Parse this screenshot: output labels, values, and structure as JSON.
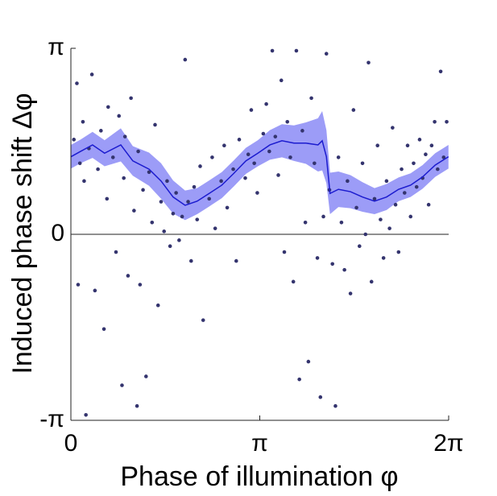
{
  "chart_data": {
    "type": "scatter",
    "xlabel": "Phase of illumination φ",
    "ylabel": "Induced phase shift Δφ",
    "xlim": [
      0,
      6.28319
    ],
    "ylim": [
      -3.14159,
      3.14159
    ],
    "xticks": [
      0,
      {
        "value": 3.14159,
        "label": "π"
      },
      {
        "value": 6.28319,
        "label": "2π"
      }
    ],
    "yticks": [
      {
        "value": -3.14159,
        "label": "-π"
      },
      0,
      {
        "value": 3.14159,
        "label": "π"
      }
    ],
    "zero_line": true,
    "series": [
      {
        "type": "scatter",
        "color": "#34346e",
        "x": [
          0.05,
          0.1,
          0.12,
          0.15,
          0.2,
          0.22,
          0.25,
          0.3,
          0.35,
          0.4,
          0.45,
          0.5,
          0.55,
          0.6,
          0.62,
          0.7,
          0.75,
          0.8,
          0.85,
          0.88,
          0.9,
          0.95,
          1.0,
          1.05,
          1.1,
          1.12,
          1.15,
          1.2,
          1.25,
          1.3,
          1.35,
          1.4,
          1.45,
          1.5,
          1.55,
          1.6,
          1.65,
          1.7,
          1.75,
          1.8,
          1.85,
          1.9,
          1.95,
          2.0,
          2.05,
          2.1,
          2.15,
          2.2,
          2.3,
          2.35,
          2.4,
          2.5,
          2.55,
          2.6,
          2.7,
          2.75,
          2.8,
          2.9,
          2.95,
          3.0,
          3.05,
          3.1,
          3.2,
          3.25,
          3.3,
          3.35,
          3.4,
          3.45,
          3.5,
          3.55,
          3.6,
          3.65,
          3.7,
          3.75,
          3.8,
          3.85,
          3.9,
          3.95,
          4.0,
          4.05,
          4.1,
          4.15,
          4.2,
          4.25,
          4.3,
          4.35,
          4.4,
          4.45,
          4.5,
          4.55,
          4.6,
          4.65,
          4.7,
          4.75,
          4.8,
          4.85,
          4.9,
          4.95,
          5.0,
          5.05,
          5.1,
          5.15,
          5.2,
          5.25,
          5.3,
          5.35,
          5.4,
          5.45,
          5.5,
          5.55,
          5.6,
          5.65,
          5.7,
          5.75,
          5.8,
          5.85,
          5.9,
          5.95,
          6.0,
          6.05,
          6.1,
          6.15,
          6.2,
          6.25
        ],
        "values": [
          1.6,
          2.55,
          -0.85,
          1.2,
          1.9,
          0.9,
          -3.05,
          1.45,
          2.7,
          -0.95,
          1.1,
          1.75,
          -1.6,
          0.6,
          2.15,
          1.3,
          -0.3,
          2.0,
          -2.55,
          0.95,
          1.65,
          -0.7,
          2.3,
          0.4,
          -2.9,
          1.4,
          -0.85,
          0.75,
          -2.4,
          1.05,
          0.2,
          1.85,
          -1.2,
          0.55,
          0.05,
          0.9,
          -0.2,
          0.35,
          0.7,
          -0.1,
          0.3,
          2.95,
          0.55,
          -0.45,
          0.8,
          0.25,
          1.15,
          -1.45,
          0.6,
          1.3,
          0.1,
          0.9,
          1.5,
          0.45,
          1.1,
          -0.45,
          1.6,
          0.95,
          1.35,
          2.1,
          1.2,
          0.7,
          1.7,
          2.2,
          1.4,
          3.1,
          1.65,
          1.0,
          2.6,
          -0.3,
          1.9,
          1.3,
          -0.8,
          3.1,
          -2.45,
          1.75,
          0.2,
          -2.15,
          2.3,
          1.2,
          -0.4,
          -2.75,
          0.3,
          3.05,
          0.75,
          -0.5,
          -2.9,
          1.3,
          0.2,
          -0.6,
          0.9,
          -1.0,
          2.1,
          0.45,
          -0.2,
          1.2,
          0.0,
          2.9,
          -0.8,
          0.6,
          1.5,
          0.25,
          -0.4,
          0.9,
          0.1,
          1.8,
          0.5,
          -0.3,
          1.1,
          0.7,
          1.5,
          0.3,
          1.2,
          0.8,
          1.6,
          0.95,
          1.35,
          0.5,
          1.5,
          1.9,
          1.1,
          2.75,
          1.3,
          1.9
        ]
      },
      {
        "type": "line",
        "color": "#1c1ccf",
        "band_color": "#9c9cf7",
        "x": [
          0,
          0.16,
          0.36,
          0.56,
          0.83,
          1.03,
          1.3,
          1.5,
          1.7,
          1.9,
          2.1,
          2.3,
          2.51,
          2.71,
          2.91,
          3.11,
          3.31,
          3.51,
          3.71,
          3.91,
          4.11,
          4.18,
          4.25,
          4.31,
          4.45,
          4.65,
          4.85,
          5.05,
          5.25,
          5.45,
          5.65,
          5.85,
          6.06,
          6.28
        ],
        "values": [
          1.31,
          1.4,
          1.51,
          1.37,
          1.51,
          1.24,
          1.1,
          0.9,
          0.63,
          0.49,
          0.56,
          0.69,
          0.83,
          1.03,
          1.24,
          1.37,
          1.51,
          1.58,
          1.54,
          1.54,
          1.51,
          1.58,
          1.31,
          0.69,
          0.76,
          0.72,
          0.63,
          0.56,
          0.63,
          0.76,
          0.83,
          0.97,
          1.17,
          1.31
        ],
        "band_lower": [
          1.11,
          1.2,
          1.29,
          1.15,
          1.23,
          0.99,
          0.82,
          0.6,
          0.35,
          0.24,
          0.34,
          0.47,
          0.61,
          0.81,
          1.02,
          1.15,
          1.26,
          1.3,
          1.24,
          1.19,
          1.06,
          1.08,
          0.86,
          0.34,
          0.46,
          0.44,
          0.38,
          0.34,
          0.41,
          0.56,
          0.63,
          0.77,
          0.97,
          1.11
        ],
        "band_upper": [
          1.51,
          1.6,
          1.73,
          1.59,
          1.79,
          1.49,
          1.38,
          1.2,
          0.91,
          0.74,
          0.78,
          0.91,
          1.05,
          1.25,
          1.46,
          1.59,
          1.76,
          1.86,
          1.84,
          1.89,
          1.96,
          2.08,
          1.76,
          1.04,
          1.06,
          1.0,
          0.88,
          0.78,
          0.85,
          0.96,
          1.03,
          1.17,
          1.37,
          1.51
        ]
      }
    ]
  }
}
